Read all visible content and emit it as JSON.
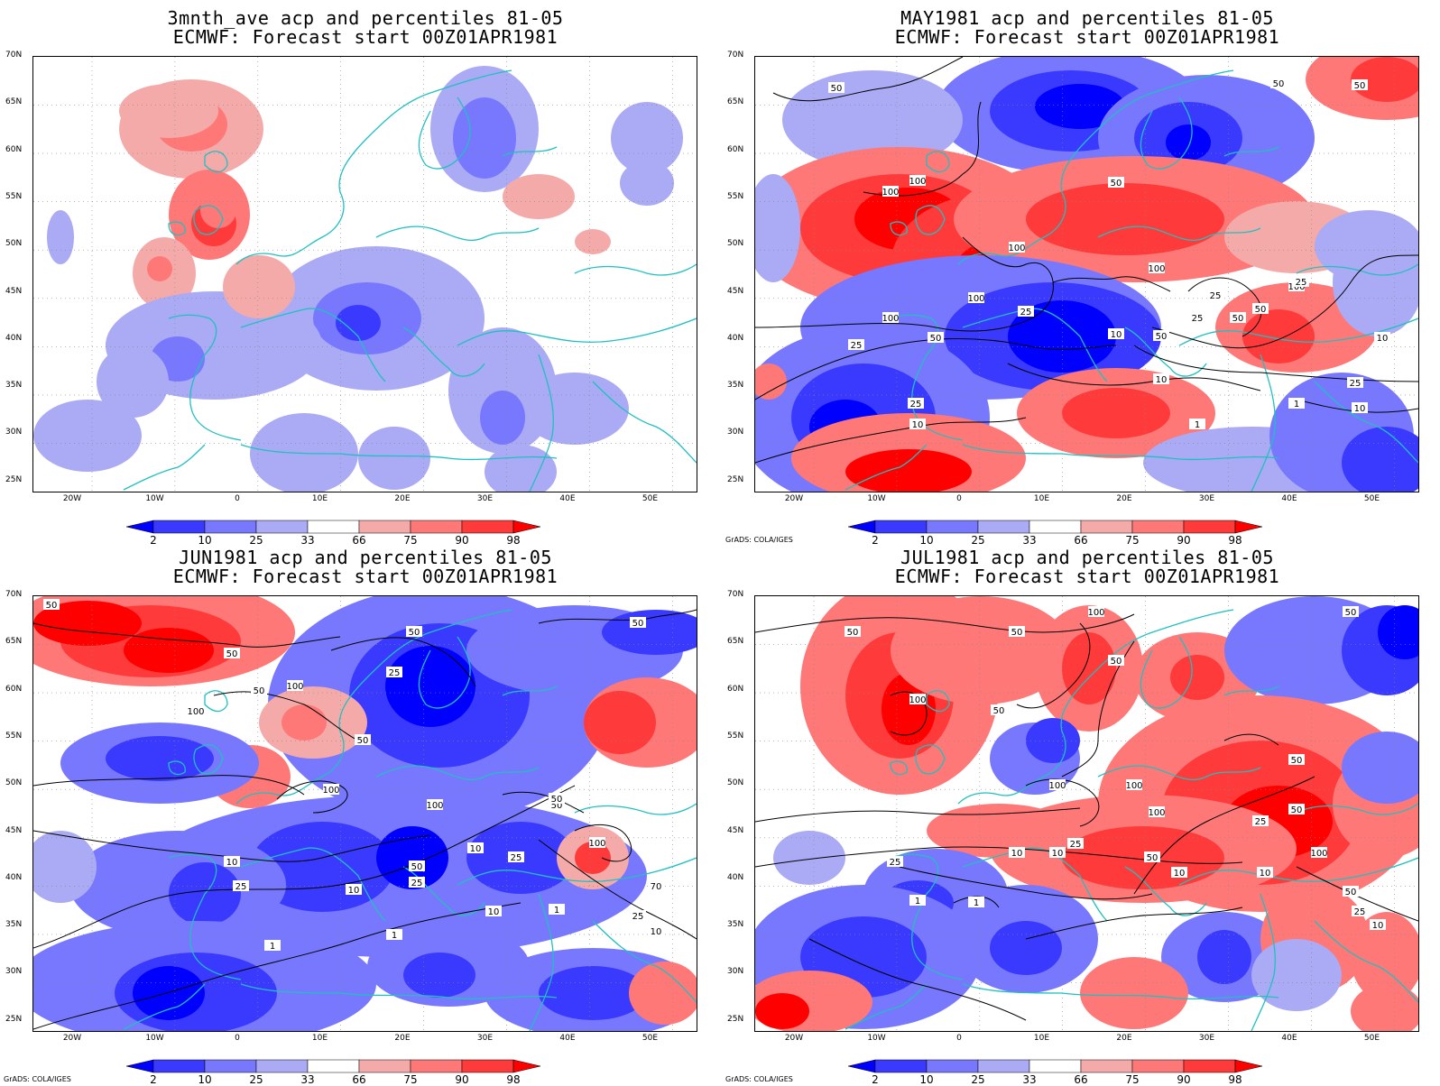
{
  "panels": [
    {
      "title1": "3mnth_ave acp and percentiles 81-05",
      "title2": "ECMWF: Forecast start 00Z01APR1981",
      "credit": "",
      "contour_labels": []
    },
    {
      "title1": "MAY1981 acp and percentiles 81-05",
      "title2": "ECMWF: Forecast start 00Z01APR1981",
      "credit": "GrADS: COLA/IGES",
      "contour_labels": [
        "50",
        "50",
        "50",
        "100",
        "100",
        "50",
        "100",
        "100",
        "100",
        "25",
        "50",
        "25",
        "50",
        "100",
        "25",
        "50",
        "25",
        "10",
        "50",
        "25",
        "10",
        "1",
        "10",
        "1",
        "10",
        "25",
        "100",
        "25",
        "10"
      ]
    },
    {
      "title1": "JUN1981 acp and percentiles 81-05",
      "title2": "ECMWF: Forecast start 00Z01APR1981",
      "credit": "GrADS: COLA/IGES",
      "contour_labels": [
        "50",
        "50",
        "50",
        "50",
        "25",
        "100",
        "100",
        "50",
        "50",
        "100",
        "100",
        "50",
        "50",
        "10",
        "25",
        "50",
        "25",
        "10",
        "25",
        "10",
        "10",
        "1",
        "1",
        "1",
        "100",
        "70",
        "25",
        "10"
      ]
    },
    {
      "title1": "JUL1981 acp and percentiles 81-05",
      "title2": "ECMWF: Forecast start 00Z01APR1981",
      "credit": "GrADS: COLA/IGES",
      "contour_labels": [
        "50",
        "50",
        "100",
        "50",
        "50",
        "100",
        "50",
        "100",
        "100",
        "100",
        "50",
        "50",
        "25",
        "10",
        "25",
        "50",
        "10",
        "10",
        "10",
        "1",
        "1",
        "100",
        "25",
        "50",
        "25",
        "10"
      ]
    }
  ],
  "axes": {
    "y_ticks": [
      "70N",
      "65N",
      "60N",
      "55N",
      "50N",
      "45N",
      "40N",
      "35N",
      "30N",
      "25N"
    ],
    "x_ticks": [
      "20W",
      "10W",
      "0",
      "10E",
      "20E",
      "30E",
      "40E",
      "50E"
    ]
  },
  "colorbar": {
    "labels": [
      "2",
      "10",
      "25",
      "33",
      "66",
      "75",
      "90",
      "98"
    ],
    "colors": [
      "#0000ff",
      "#3a3aff",
      "#7878ff",
      "#aaaaf5",
      "#ffffff",
      "#f5aaaa",
      "#ff7878",
      "#ff3a3a",
      "#ff0000"
    ]
  },
  "map_colors": {
    "coast": "#20c0c0",
    "contour": "#000000"
  }
}
